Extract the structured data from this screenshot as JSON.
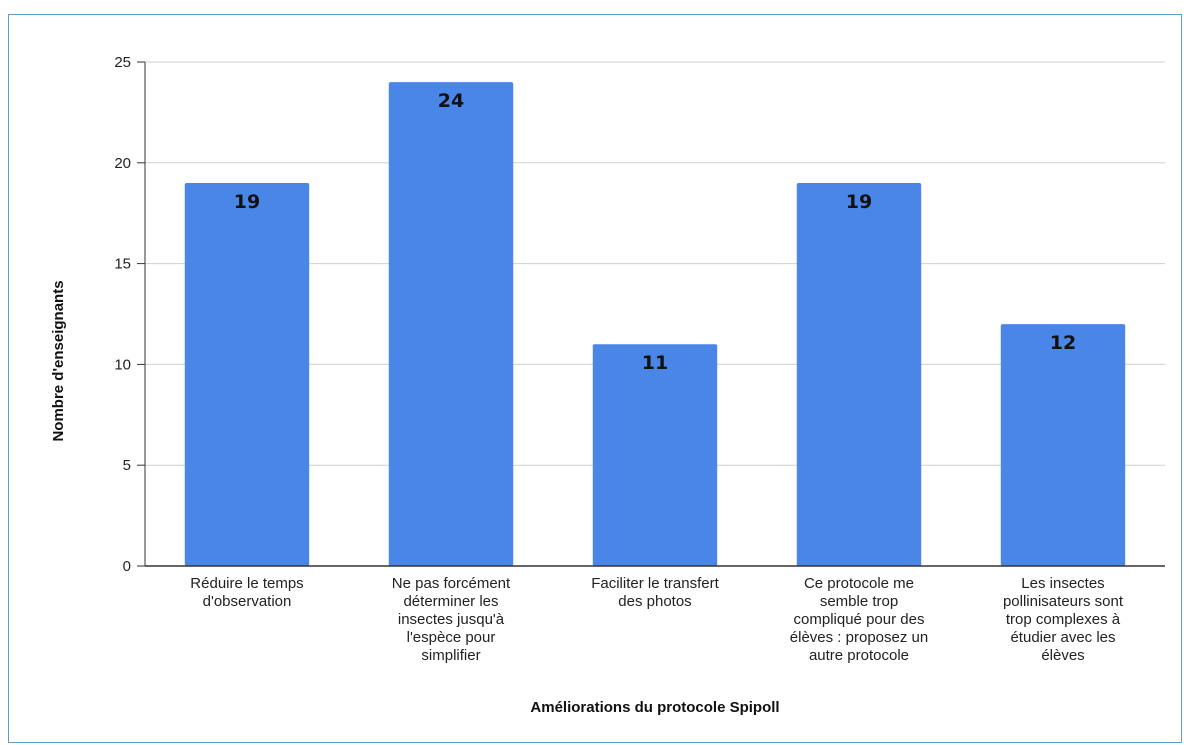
{
  "chart_data": {
    "type": "bar",
    "title": "",
    "xlabel": "Améliorations du protocole Spipoll",
    "ylabel": "Nombre d'enseignants",
    "ylim": [
      0,
      25
    ],
    "yticks": [
      0,
      5,
      10,
      15,
      20,
      25
    ],
    "grid": true,
    "legend": "none",
    "bar_color": "#4a86e8",
    "categories": [
      [
        "Réduire le temps",
        "d'observation"
      ],
      [
        "Ne pas forcément",
        "déterminer les",
        "insectes jusqu'à",
        "l'espèce pour",
        "simplifier"
      ],
      [
        "Faciliter le transfert",
        "des photos"
      ],
      [
        "Ce protocole me",
        "semble trop",
        "compliqué pour des",
        "élèves : proposez un",
        "autre protocole"
      ],
      [
        "Les insectes",
        "pollinisateurs sont",
        "trop complexes à",
        "étudier avec les",
        "élèves"
      ]
    ],
    "values": [
      19,
      24,
      11,
      19,
      12
    ]
  }
}
